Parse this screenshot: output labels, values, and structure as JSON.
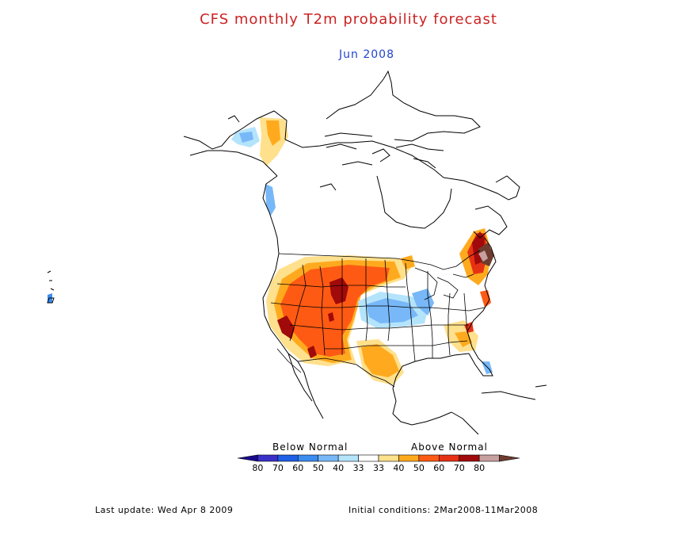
{
  "header": {
    "title": "CFS monthly T2m probability forecast",
    "title_color": "#cc2222",
    "subtitle": "Jun 2008",
    "subtitle_color": "#2244cc"
  },
  "colorbar": {
    "below_label": "Below Normal",
    "above_label": "Above Normal",
    "ticks": [
      "80",
      "70",
      "60",
      "50",
      "40",
      "33",
      "33",
      "40",
      "50",
      "60",
      "70",
      "80"
    ],
    "colors": [
      "#1a0a8c",
      "#3a30c8",
      "#1e5fe6",
      "#3c8cf0",
      "#78b8f8",
      "#b4e4fc",
      "#ffffff",
      "#ffe08c",
      "#ffaa1e",
      "#ff5a14",
      "#e63214",
      "#a00a0a",
      "#c8a0a0",
      "#6e3c2e"
    ]
  },
  "footer": {
    "last_update": "Last update: Wed Apr 8 2009",
    "initial_conditions": "Initial conditions: 2Mar2008-11Mar2008"
  }
}
